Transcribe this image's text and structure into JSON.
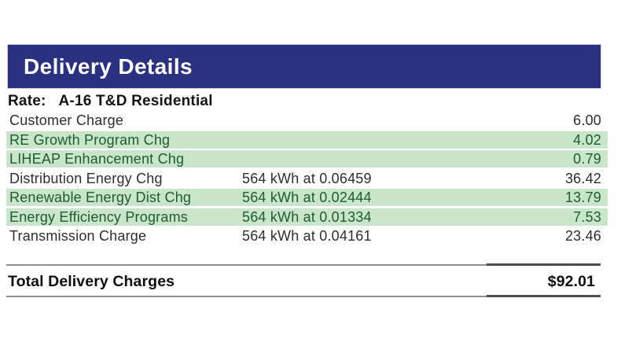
{
  "header": {
    "title": "Delivery Details"
  },
  "rate": {
    "label": "Rate:",
    "value": "A-16 T&D Residential"
  },
  "charges": [
    {
      "name": "Customer Charge",
      "usage": "",
      "amount": "6.00",
      "highlight": false
    },
    {
      "name": "RE Growth Program Chg",
      "usage": "",
      "amount": "4.02",
      "highlight": true
    },
    {
      "name": "LIHEAP Enhancement Chg",
      "usage": "",
      "amount": "0.79",
      "highlight": true
    },
    {
      "name": "Distribution Energy Chg",
      "usage": "564 kWh at 0.06459",
      "amount": "36.42",
      "highlight": false
    },
    {
      "name": "Renewable Energy Dist Chg",
      "usage": "564 kWh at 0.02444",
      "amount": "13.79",
      "highlight": true
    },
    {
      "name": "Energy Efficiency Programs",
      "usage": "564 kWh at 0.01334",
      "amount": "7.53",
      "highlight": true
    },
    {
      "name": "Transmission Charge",
      "usage": "564 kWh at 0.04161",
      "amount": "23.46",
      "highlight": false
    }
  ],
  "total": {
    "label": "Total Delivery Charges",
    "amount": "$92.01"
  },
  "colors": {
    "header_bg": "#2b3181",
    "highlight_bg": "#c9e6ca",
    "highlight_text": "#1e5a33"
  }
}
